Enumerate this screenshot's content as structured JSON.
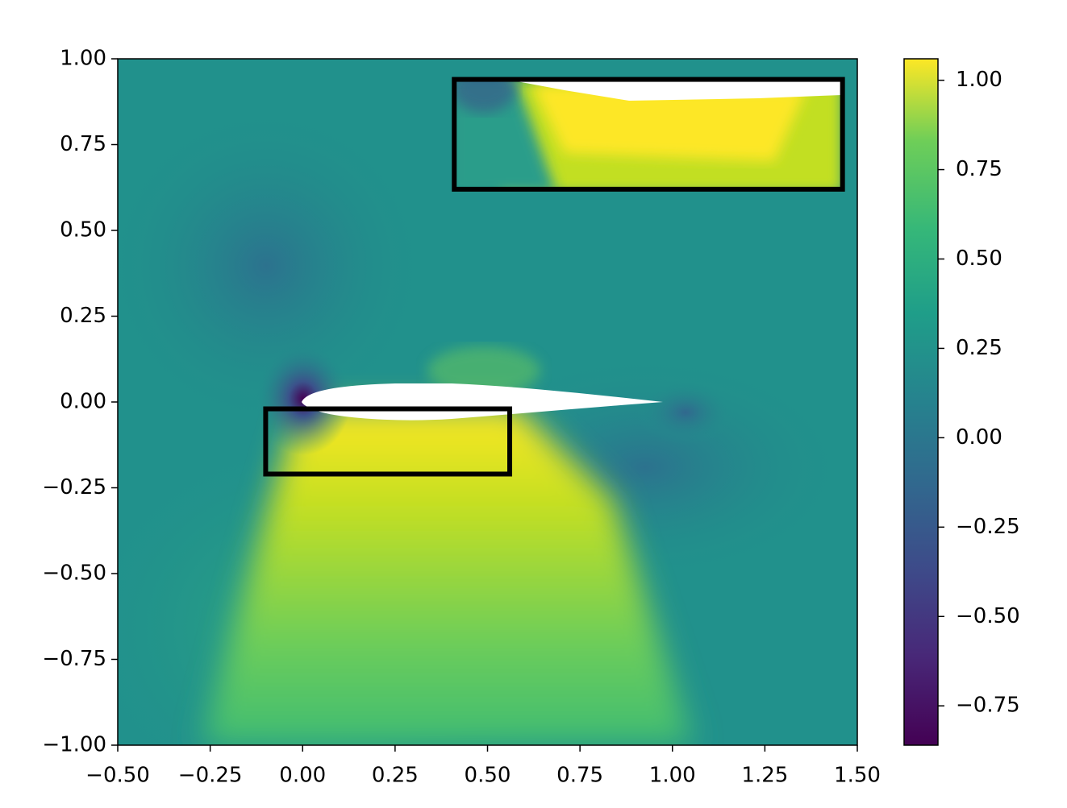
{
  "chart_data": {
    "type": "heatmap",
    "xlim": [
      -0.5,
      1.5
    ],
    "ylim": [
      -1.0,
      1.0
    ],
    "xticks": [
      {
        "value": -0.5,
        "label": "−0.50"
      },
      {
        "value": -0.25,
        "label": "−0.25"
      },
      {
        "value": 0,
        "label": "0.00"
      },
      {
        "value": 0.25,
        "label": "0.25"
      },
      {
        "value": 0.5,
        "label": "0.50"
      },
      {
        "value": 0.75,
        "label": "0.75"
      },
      {
        "value": 1.0,
        "label": "1.00"
      },
      {
        "value": 1.25,
        "label": "1.25"
      },
      {
        "value": 1.5,
        "label": "1.50"
      }
    ],
    "yticks": [
      {
        "value": -1.0,
        "label": "−1.00"
      },
      {
        "value": -0.75,
        "label": "−0.75"
      },
      {
        "value": -0.5,
        "label": "−0.50"
      },
      {
        "value": -0.25,
        "label": "−0.25"
      },
      {
        "value": 0,
        "label": "0.00"
      },
      {
        "value": 0.25,
        "label": "0.25"
      },
      {
        "value": 0.5,
        "label": "0.50"
      },
      {
        "value": 0.75,
        "label": "0.75"
      },
      {
        "value": 1.0,
        "label": "1.00"
      }
    ],
    "colorbar": {
      "colormap": "viridis",
      "clim": [
        -0.86,
        1.06
      ],
      "ticks": [
        {
          "value": -0.75,
          "label": "−0.75"
        },
        {
          "value": -0.5,
          "label": "−0.50"
        },
        {
          "value": -0.25,
          "label": "−0.25"
        },
        {
          "value": 0,
          "label": "0.00"
        },
        {
          "value": 0.25,
          "label": "0.25"
        },
        {
          "value": 0.5,
          "label": "0.50"
        },
        {
          "value": 0.75,
          "label": "0.75"
        },
        {
          "value": 1.0,
          "label": "1.00"
        }
      ]
    },
    "boxes": [
      {
        "x": [
          0.41,
          1.46
        ],
        "y": [
          0.62,
          0.94
        ],
        "color": "#000000"
      },
      {
        "x": [
          -0.1,
          0.56
        ],
        "y": [
          -0.21,
          -0.02
        ],
        "color": "#000000"
      }
    ]
  }
}
